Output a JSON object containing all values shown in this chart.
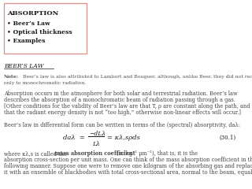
{
  "title_box_text": "ABSORPTION",
  "bullet_items": [
    "• Beer’s Law",
    "• Optical thickness",
    "• Examples"
  ],
  "section_heading": "BEER’S LAW",
  "note_bold": "Note:",
  "note_rest": " Beer’s law is also attributed to Lambert and Bouguer, although, unlike Beer, they did not recognize that it applies",
  "note_line2": "only to monochromatic radiation.",
  "para1_lines": [
    "Absorption occurs in the atmosphere for both solar and terrestrial radiation. Beer’s law",
    "describes the absorption of a monochromatic beam of radiation passing through a gas.",
    "[Other conditions for the validity of Beer’s law are that T, ρ are constant along the path, and",
    "that the radiant energy density is not “too high,” otherwise non-linear effects will occur.]"
  ],
  "para2": "Beer’s law in differential form can be written in terms of the (spectral) absorptivity, daλ:",
  "eq_left": "daλ =",
  "eq_num": "−dLλ",
  "eq_den": "Lλ",
  "eq_right": "= κλ,sρds",
  "eq_number": "(30.1)",
  "para3_pre": "where κλ,s is called the ",
  "para3_bold": "mass absorption coefficient",
  "para3_post": " (m²kg⁻¹ μm⁻¹), that is, it is the",
  "para3_lines": [
    "absorption cross-section per unit mass. One can think of the mass absorption coefficient in the",
    "following manner. Suppose one were to remove one kilogram of the absorbing gas and replace",
    "it with an ensemble of blackbodies with total cross-sectional area, normal to the beam, equal"
  ],
  "bg_color": "#ffffff",
  "box_border_color": "#d9928a",
  "text_color": "#1a1a1a",
  "note_color": "#555555",
  "body_color": "#444444"
}
